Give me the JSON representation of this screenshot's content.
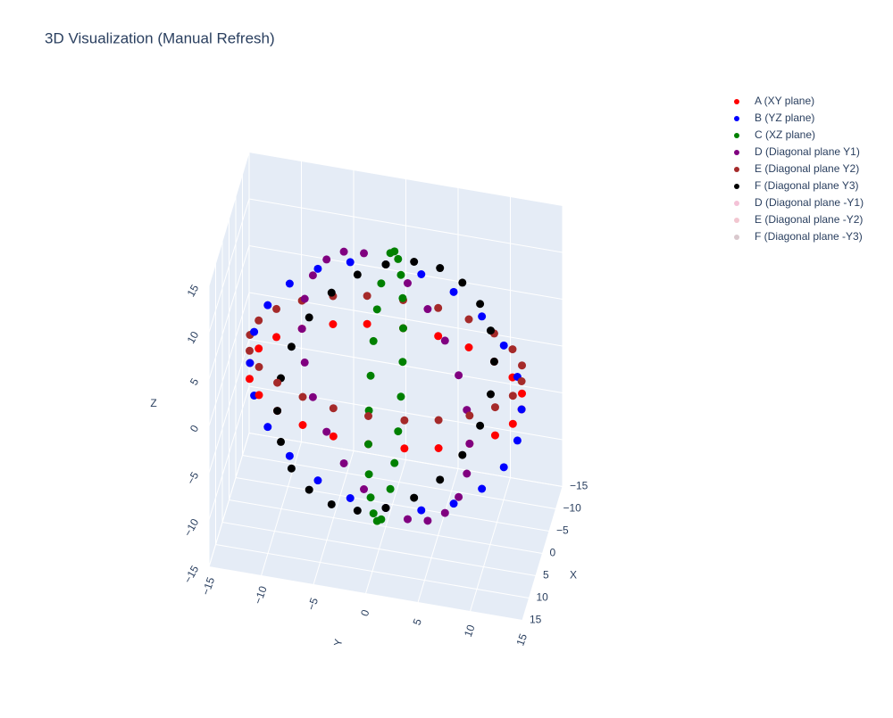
{
  "chart_data": {
    "type": "scatter3d",
    "title": "3D Visualization (Manual Refresh)",
    "xlabel": "X",
    "ylabel": "Y",
    "zlabel": "Z",
    "xlim": [
      -15,
      15
    ],
    "ylim": [
      -15,
      15
    ],
    "zlim": [
      -15,
      15
    ],
    "xticks": [
      {
        "value": -15,
        "label": "−15"
      },
      {
        "value": -10,
        "label": "−10"
      },
      {
        "value": -5,
        "label": "−5"
      },
      0,
      5,
      10,
      15
    ],
    "yticks": [
      {
        "value": -15,
        "label": "−15"
      },
      {
        "value": -10,
        "label": "−10"
      },
      {
        "value": -5,
        "label": "−5"
      },
      0,
      5,
      10,
      15
    ],
    "zticks": [
      {
        "value": -15,
        "label": "−15"
      },
      {
        "value": -10,
        "label": "−10"
      },
      {
        "value": -5,
        "label": "−5"
      },
      0,
      5,
      10,
      15
    ],
    "grid": true,
    "series": [
      {
        "name": "A (XY plane)",
        "color": "#ff0000",
        "x": [
          13,
          12.6,
          11.3,
          9.2,
          6.5,
          3.4,
          0,
          -3.4,
          -6.5,
          -9.2,
          -11.3,
          -12.6,
          -13,
          -12.6,
          -11.3,
          -9.2,
          -6.5,
          -3.4,
          0,
          3.4,
          6.5,
          9.2,
          11.3,
          12.6
        ],
        "y": [
          0,
          3.4,
          6.5,
          9.2,
          11.3,
          12.6,
          13,
          12.6,
          11.3,
          9.2,
          6.5,
          3.4,
          0,
          -3.4,
          -6.5,
          -9.2,
          -11.3,
          -12.6,
          -13,
          -12.6,
          -11.3,
          -9.2,
          -6.5,
          -3.4
        ],
        "z": [
          0,
          0,
          0,
          0,
          0,
          0,
          0,
          0,
          0,
          0,
          0,
          0,
          0,
          0,
          0,
          0,
          0,
          0,
          0,
          0,
          0,
          0,
          0,
          0
        ]
      },
      {
        "name": "B (YZ plane)",
        "color": "#0000ff",
        "x": [
          0,
          0,
          0,
          0,
          0,
          0,
          0,
          0,
          0,
          0,
          0,
          0,
          0,
          0,
          0,
          0,
          0,
          0,
          0,
          0,
          0,
          0,
          0,
          0
        ],
        "y": [
          13,
          12.6,
          11.3,
          9.2,
          6.5,
          3.4,
          0,
          -3.4,
          -6.5,
          -9.2,
          -11.3,
          -12.6,
          -13,
          -12.6,
          -11.3,
          -9.2,
          -6.5,
          -3.4,
          0,
          3.4,
          6.5,
          9.2,
          11.3,
          12.6
        ],
        "z": [
          0,
          3.4,
          6.5,
          9.2,
          11.3,
          12.6,
          13,
          12.6,
          11.3,
          9.2,
          6.5,
          3.4,
          0,
          -3.4,
          -6.5,
          -9.2,
          -11.3,
          -12.6,
          -13,
          -12.6,
          -11.3,
          -9.2,
          -6.5,
          -3.4
        ]
      },
      {
        "name": "C (XZ plane)",
        "color": "#008000",
        "x": [
          13,
          12.6,
          11.3,
          9.2,
          6.5,
          3.4,
          0,
          -3.4,
          -6.5,
          -9.2,
          -11.3,
          -12.6,
          -13,
          -12.6,
          -11.3,
          -9.2,
          -6.5,
          -3.4,
          0,
          3.4,
          6.5,
          9.2,
          11.3,
          12.6
        ],
        "y": [
          0,
          0,
          0,
          0,
          0,
          0,
          0,
          0,
          0,
          0,
          0,
          0,
          0,
          0,
          0,
          0,
          0,
          0,
          0,
          0,
          0,
          0,
          0,
          0
        ],
        "z": [
          0,
          3.4,
          6.5,
          9.2,
          11.3,
          12.6,
          13,
          12.6,
          11.3,
          9.2,
          6.5,
          3.4,
          0,
          -3.4,
          -6.5,
          -9.2,
          -11.3,
          -12.6,
          -13,
          -12.6,
          -11.3,
          -9.2,
          -6.5,
          -3.4
        ]
      },
      {
        "name": "D (Diagonal plane Y1)",
        "color": "#800080",
        "x": [
          9.2,
          8.9,
          8,
          6.5,
          4.6,
          2.4,
          0,
          -2.4,
          -4.6,
          -6.5,
          -8,
          -8.9,
          -9.2,
          -8.9,
          -8,
          -6.5,
          -4.6,
          -2.4,
          0,
          2.4,
          4.6,
          6.5,
          8,
          8.9
        ],
        "y": [
          9.2,
          8.9,
          8,
          6.5,
          4.6,
          2.4,
          0,
          -2.4,
          -4.6,
          -6.5,
          -8,
          -8.9,
          -9.2,
          -8.9,
          -8,
          -6.5,
          -4.6,
          -2.4,
          0,
          2.4,
          4.6,
          6.5,
          8,
          8.9
        ],
        "z": [
          0,
          3.4,
          6.5,
          9.2,
          11.3,
          12.6,
          13,
          12.6,
          11.3,
          9.2,
          6.5,
          3.4,
          0,
          -3.4,
          -6.5,
          -9.2,
          -11.3,
          -12.6,
          -13,
          -12.6,
          -11.3,
          -9.2,
          -6.5,
          -3.4
        ]
      },
      {
        "name": "E (Diagonal plane Y2)",
        "color": "#a52a2a",
        "x": [
          13,
          12.6,
          11.3,
          9.2,
          6.5,
          3.4,
          0,
          -3.4,
          -6.5,
          -9.2,
          -11.3,
          -12.6,
          -13,
          -12.6,
          -11.3,
          -9.2,
          -6.5,
          -3.4,
          0,
          3.4,
          6.5,
          9.2,
          11.3,
          12.6
        ],
        "y": [
          0,
          3.4,
          6.5,
          9.2,
          11.3,
          12.6,
          13,
          12.6,
          11.3,
          9.2,
          6.5,
          3.4,
          0,
          -3.4,
          -6.5,
          -9.2,
          -11.3,
          -12.6,
          -13,
          -12.6,
          -11.3,
          -9.2,
          -6.5,
          -3.4
        ],
        "z": [
          3,
          3,
          3,
          3,
          3,
          3,
          3,
          3,
          3,
          3,
          3,
          3,
          3,
          3,
          3,
          3,
          3,
          3,
          3,
          3,
          3,
          3,
          3,
          3
        ]
      },
      {
        "name": "F (Diagonal plane Y3)",
        "color": "#000000",
        "x": [
          9.2,
          8.9,
          8,
          6.5,
          4.6,
          2.4,
          0,
          -2.4,
          -4.6,
          -6.5,
          -8,
          -8.9,
          -9.2,
          -8.9,
          -8,
          -6.5,
          -4.6,
          -2.4,
          0,
          2.4,
          4.6,
          6.5,
          8,
          8.9
        ],
        "y": [
          -9.2,
          -8.9,
          -8,
          -6.5,
          -4.6,
          -2.4,
          0,
          2.4,
          4.6,
          6.5,
          8,
          8.9,
          9.2,
          8.9,
          8,
          6.5,
          4.6,
          2.4,
          0,
          -2.4,
          -4.6,
          -6.5,
          -8,
          -8.9
        ],
        "z": [
          0,
          3.4,
          6.5,
          9.2,
          11.3,
          12.6,
          13,
          12.6,
          11.3,
          9.2,
          6.5,
          3.4,
          0,
          -3.4,
          -6.5,
          -9.2,
          -11.3,
          -12.6,
          -13,
          -12.6,
          -11.3,
          -9.2,
          -6.5,
          -3.4
        ]
      },
      {
        "name": "D (Diagonal plane -Y1)",
        "color": "#f4c2d7",
        "x": [],
        "y": [],
        "z": []
      },
      {
        "name": "E (Diagonal plane -Y2)",
        "color": "#f2c6d0",
        "x": [],
        "y": [],
        "z": []
      },
      {
        "name": "F (Diagonal plane -Y3)",
        "color": "#d9c8cd",
        "x": [],
        "y": [],
        "z": []
      }
    ]
  }
}
